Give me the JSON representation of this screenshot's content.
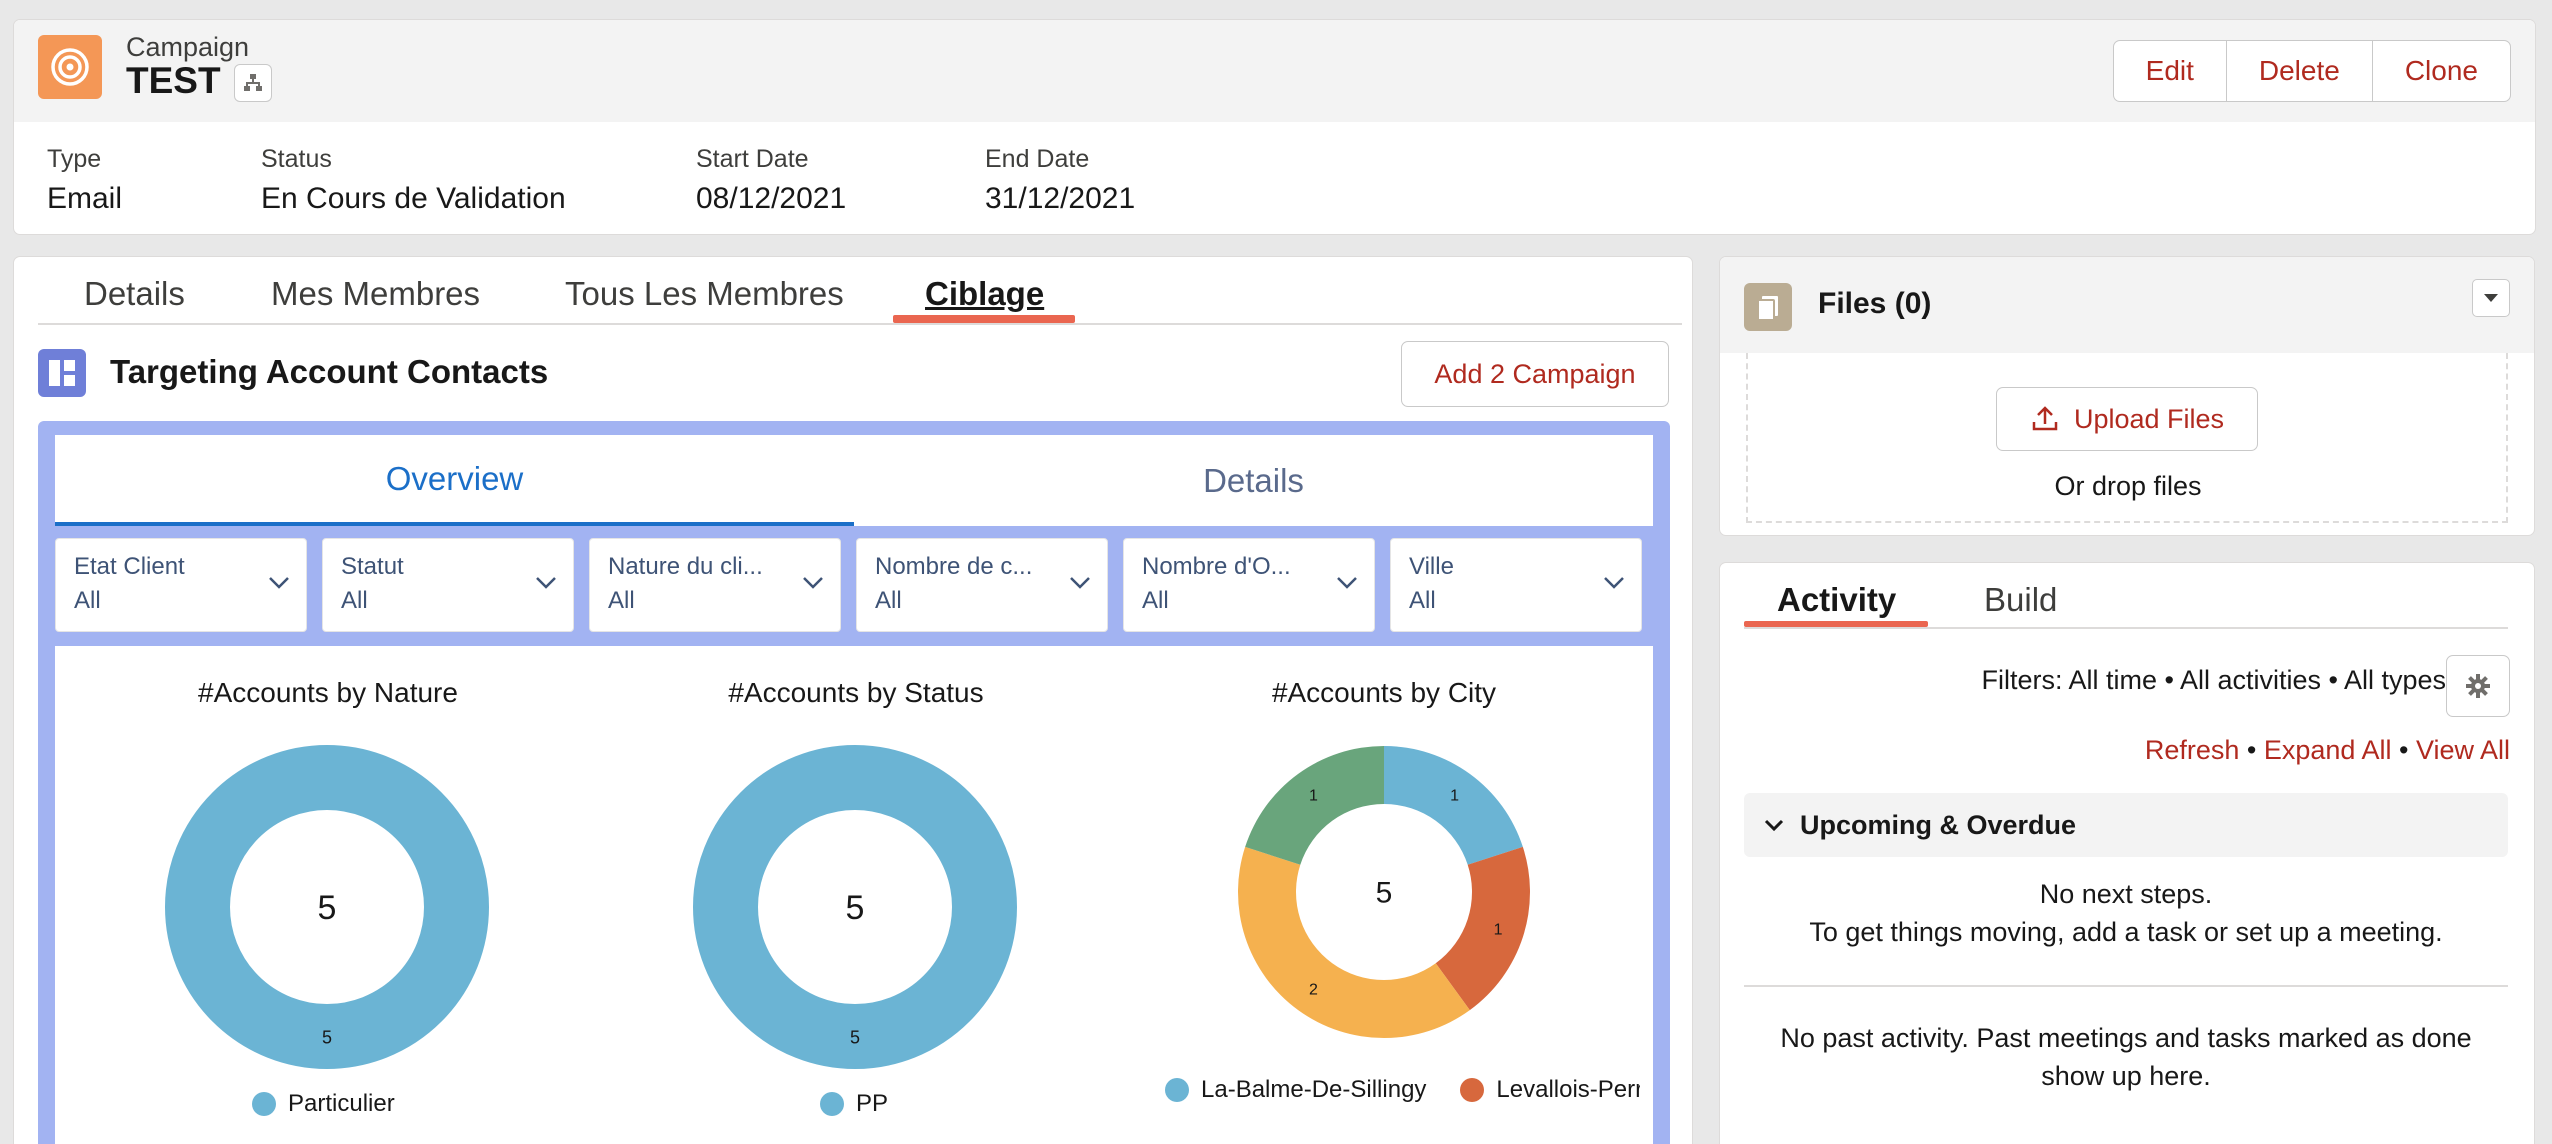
{
  "header": {
    "object_label": "Campaign",
    "record_title": "TEST",
    "actions": [
      "Edit",
      "Delete",
      "Clone"
    ],
    "fields": [
      {
        "label": "Type",
        "value": "Email"
      },
      {
        "label": "Status",
        "value": "En Cours de Validation"
      },
      {
        "label": "Start Date",
        "value": "08/12/2021"
      },
      {
        "label": "End Date",
        "value": "31/12/2021"
      }
    ]
  },
  "tabs": {
    "items": [
      "Details",
      "Mes Membres",
      "Tous Les Membres",
      "Ciblage"
    ],
    "active": "Ciblage"
  },
  "component": {
    "title": "Targeting Account Contacts",
    "add_button": "Add 2 Campaign"
  },
  "dashboard": {
    "tabs": [
      "Overview",
      "Details"
    ],
    "active_tab": "Overview",
    "filters": [
      {
        "label": "Etat Client",
        "value": "All"
      },
      {
        "label": "Statut",
        "value": "All"
      },
      {
        "label": "Nature du cli...",
        "value": "All"
      },
      {
        "label": "Nombre de c...",
        "value": "All"
      },
      {
        "label": "Nombre d'O...",
        "value": "All"
      },
      {
        "label": "Ville",
        "value": "All"
      }
    ],
    "center_labels": [
      "5",
      "5",
      "5"
    ]
  },
  "chart_data": [
    {
      "type": "pie",
      "title": "#Accounts by Nature",
      "categories": [
        "Particulier"
      ],
      "values": [
        5
      ],
      "total": 5,
      "colors": [
        "#6bb4d4"
      ]
    },
    {
      "type": "pie",
      "title": "#Accounts by Status",
      "categories": [
        "PP"
      ],
      "values": [
        5
      ],
      "total": 5,
      "colors": [
        "#6bb4d4"
      ]
    },
    {
      "type": "pie",
      "title": "#Accounts by City",
      "categories": [
        "La-Balme-De-Sillingy",
        "Levallois-Perret",
        "",
        ""
      ],
      "values": [
        1,
        1,
        2,
        1
      ],
      "total": 5,
      "colors": [
        "#6bb4d4",
        "#d7683d",
        "#f5b14f",
        "#69a57c"
      ],
      "legend_visible": [
        "La-Balme-De-Sillingy",
        "Levallois-Perre"
      ]
    }
  ],
  "files": {
    "title": "Files (0)",
    "upload_label": "Upload Files",
    "drop_text": "Or drop files"
  },
  "activity": {
    "tabs": [
      "Activity",
      "Build"
    ],
    "active_tab": "Activity",
    "filters_text": "Filters: All time • All activities • All types",
    "links": [
      "Refresh",
      "Expand All",
      "View All"
    ],
    "section_title": "Upcoming & Overdue",
    "upcoming_empty_1": "No next steps.",
    "upcoming_empty_2": "To get things moving, add a task or set up a meeting.",
    "past_empty_1": "No past activity. Past meetings and tasks marked as done",
    "past_empty_2": "show up here."
  },
  "colors": {
    "brand_red": "#b02a1f",
    "tab_underline": "#ea6650",
    "dashboard_frame": "#a2b3f2",
    "overview_blue": "#1b6fc8"
  },
  "icons": {
    "campaign": "target-icon",
    "hierarchy": "hierarchy-icon",
    "component": "dashboard-icon",
    "files": "file-icon",
    "upload": "upload-icon",
    "gear": "gear-icon"
  }
}
